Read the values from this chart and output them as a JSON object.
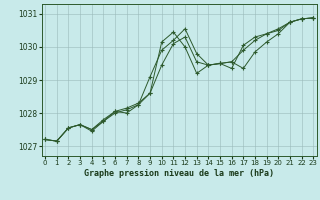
{
  "title": "Graphe pression niveau de la mer (hPa)",
  "background_color": "#c8eaea",
  "grid_color": "#9ababa",
  "line_color": "#2d5a2d",
  "x_values": [
    0,
    1,
    2,
    3,
    4,
    5,
    6,
    7,
    8,
    9,
    10,
    11,
    12,
    13,
    14,
    15,
    16,
    17,
    18,
    19,
    20,
    21,
    22,
    23
  ],
  "series1": [
    1027.2,
    1027.15,
    1027.55,
    1027.65,
    1027.45,
    1027.75,
    1028.0,
    1028.1,
    1028.25,
    1029.1,
    1029.9,
    1030.2,
    1030.55,
    1029.8,
    1029.45,
    1029.5,
    1029.55,
    1029.35,
    1029.85,
    1030.15,
    1030.4,
    1030.75,
    1030.85,
    1030.88
  ],
  "series2": [
    1027.2,
    1027.15,
    1027.55,
    1027.65,
    1027.5,
    1027.8,
    1028.05,
    1028.15,
    1028.3,
    1028.6,
    1030.15,
    1030.45,
    1030.0,
    1029.2,
    1029.45,
    1029.5,
    1029.55,
    1029.9,
    1030.2,
    1030.4,
    1030.5,
    1030.75,
    1030.85,
    1030.88
  ],
  "series3": [
    1027.2,
    1027.15,
    1027.55,
    1027.65,
    1027.5,
    1027.75,
    1028.05,
    1028.0,
    1028.25,
    1028.6,
    1029.45,
    1030.1,
    1030.3,
    1029.55,
    1029.45,
    1029.5,
    1029.35,
    1030.05,
    1030.3,
    1030.4,
    1030.55,
    1030.75,
    1030.85,
    1030.88
  ],
  "ylim": [
    1026.7,
    1031.3
  ],
  "yticks": [
    1027,
    1028,
    1029,
    1030,
    1031
  ],
  "xlim": [
    -0.3,
    23.3
  ]
}
